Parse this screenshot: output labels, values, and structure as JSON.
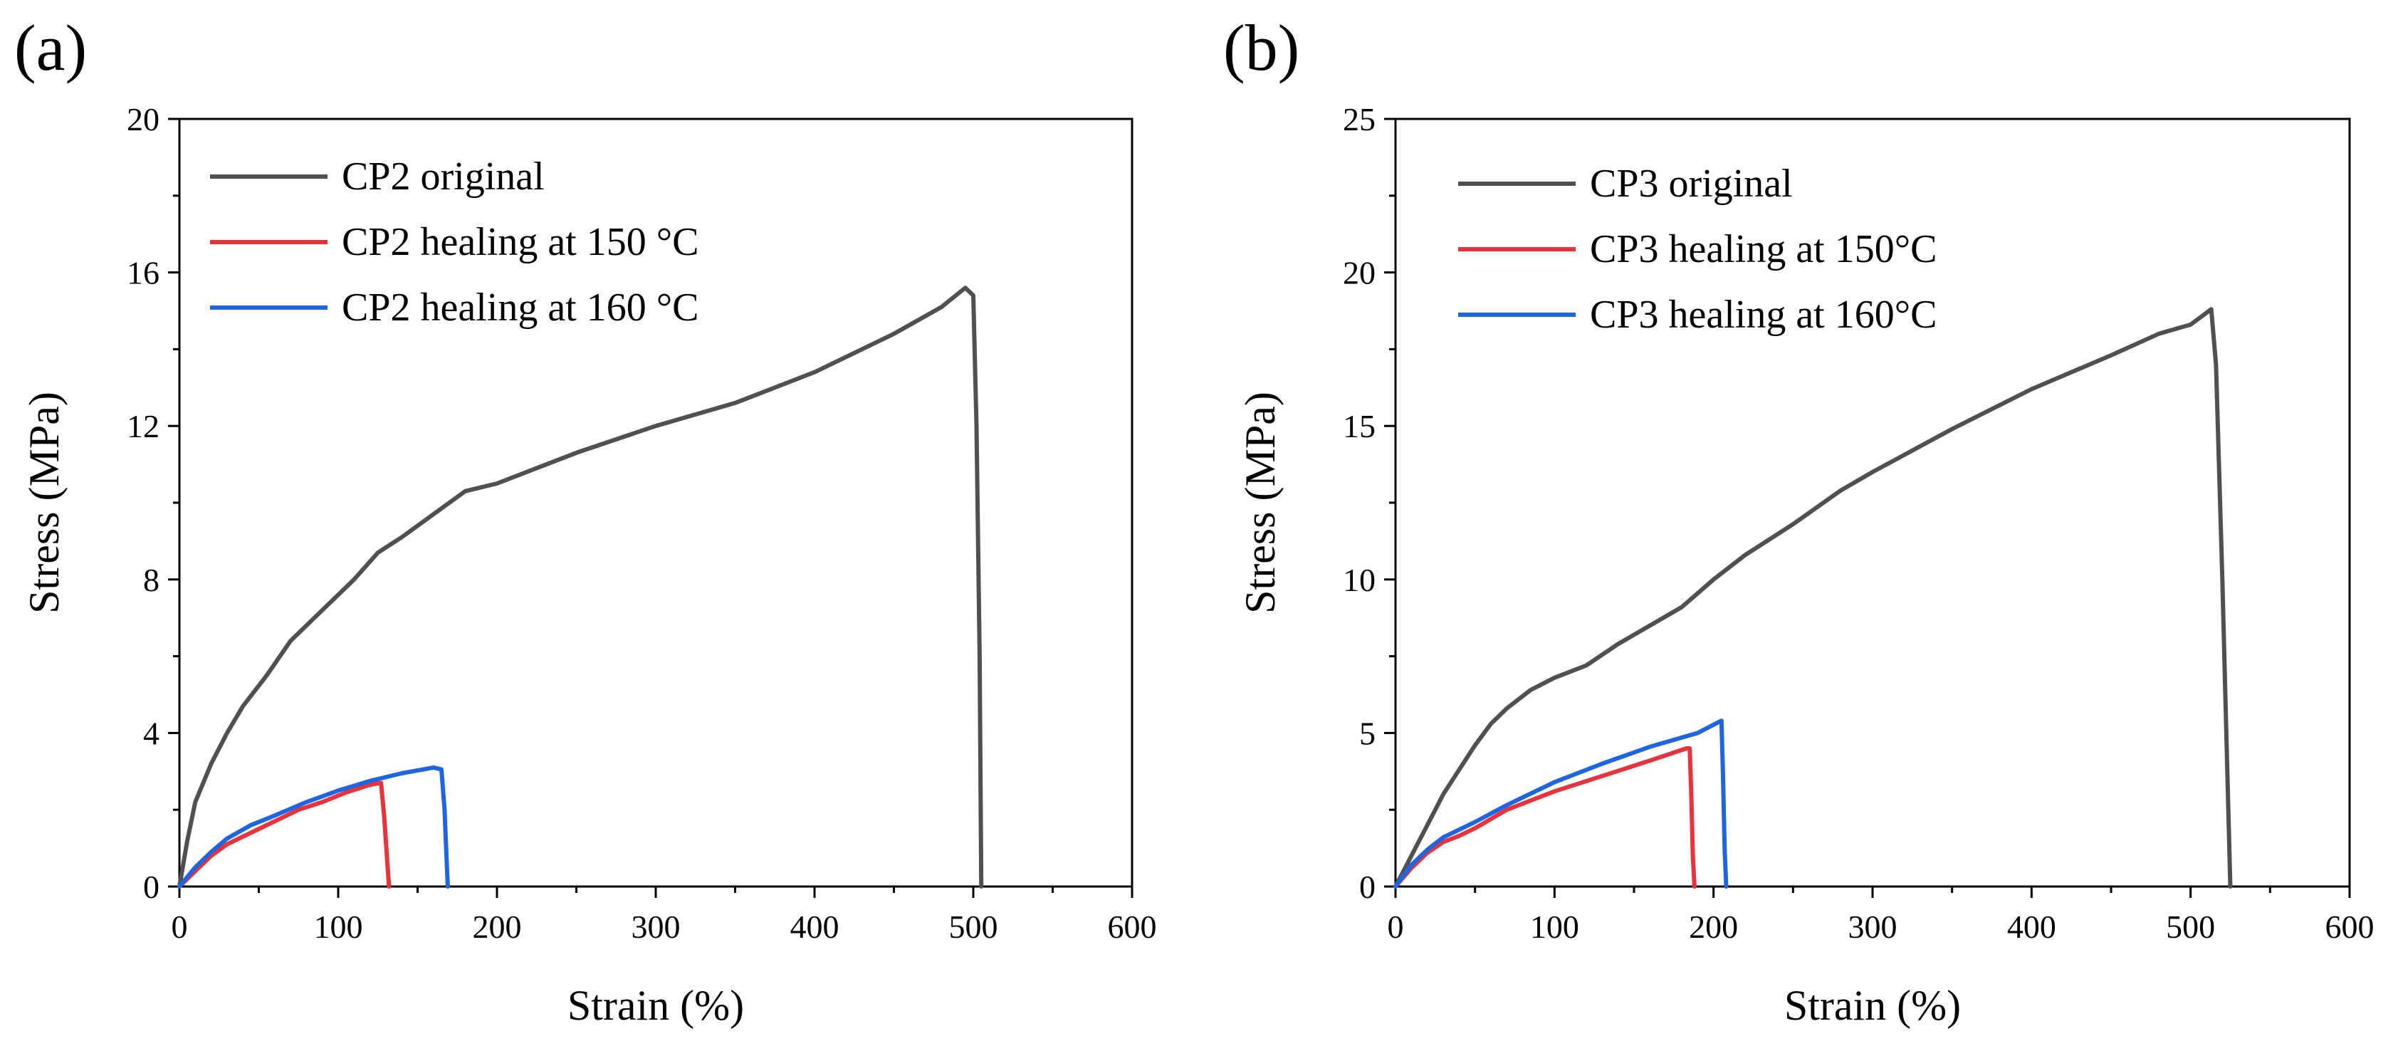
{
  "chart_data": [
    {
      "type": "line",
      "panel_label": "(a)",
      "xlabel": "Strain (%)",
      "ylabel": "Stress (MPa)",
      "xlim": [
        0,
        600
      ],
      "ylim": [
        0,
        20
      ],
      "xticks": [
        0,
        100,
        200,
        300,
        400,
        500,
        600
      ],
      "xtick_labels": [
        "0",
        "100",
        "200",
        "300",
        "400",
        "500",
        "600"
      ],
      "yticks": [
        0,
        4,
        8,
        12,
        16,
        20
      ],
      "ytick_labels": [
        "0",
        "4",
        "8",
        "12",
        "16",
        "20"
      ],
      "legend_position": "top-left",
      "series": [
        {
          "name": "CP2 original",
          "color": "#505050",
          "points": [
            [
              0,
              0
            ],
            [
              5,
              1.2
            ],
            [
              10,
              2.2
            ],
            [
              20,
              3.2
            ],
            [
              30,
              4.0
            ],
            [
              40,
              4.7
            ],
            [
              55,
              5.5
            ],
            [
              70,
              6.4
            ],
            [
              90,
              7.2
            ],
            [
              110,
              8.0
            ],
            [
              125,
              8.7
            ],
            [
              140,
              9.1
            ],
            [
              160,
              9.7
            ],
            [
              180,
              10.3
            ],
            [
              200,
              10.5
            ],
            [
              250,
              11.3
            ],
            [
              300,
              12.0
            ],
            [
              350,
              12.6
            ],
            [
              400,
              13.4
            ],
            [
              450,
              14.4
            ],
            [
              480,
              15.1
            ],
            [
              495,
              15.6
            ],
            [
              500,
              15.4
            ],
            [
              502,
              12.0
            ],
            [
              504,
              6.0
            ],
            [
              505,
              0
            ]
          ]
        },
        {
          "name": "CP2 healing at 150 °C",
          "color": "#e8333c",
          "points": [
            [
              0,
              0
            ],
            [
              10,
              0.4
            ],
            [
              20,
              0.8
            ],
            [
              30,
              1.1
            ],
            [
              45,
              1.4
            ],
            [
              60,
              1.7
            ],
            [
              75,
              2.0
            ],
            [
              90,
              2.2
            ],
            [
              105,
              2.45
            ],
            [
              120,
              2.65
            ],
            [
              127,
              2.7
            ],
            [
              129,
              1.8
            ],
            [
              131,
              0.6
            ],
            [
              132,
              0
            ]
          ]
        },
        {
          "name": "CP2 healing at 160 °C",
          "color": "#1f65e0",
          "points": [
            [
              0,
              0
            ],
            [
              10,
              0.5
            ],
            [
              20,
              0.9
            ],
            [
              30,
              1.25
            ],
            [
              45,
              1.6
            ],
            [
              60,
              1.85
            ],
            [
              80,
              2.2
            ],
            [
              100,
              2.5
            ],
            [
              120,
              2.75
            ],
            [
              140,
              2.95
            ],
            [
              160,
              3.1
            ],
            [
              165,
              3.05
            ],
            [
              167,
              2.0
            ],
            [
              168,
              1.0
            ],
            [
              169,
              0
            ]
          ]
        }
      ]
    },
    {
      "type": "line",
      "panel_label": "(b)",
      "xlabel": "Strain (%)",
      "ylabel": "Stress (MPa)",
      "xlim": [
        0,
        600
      ],
      "ylim": [
        0,
        25
      ],
      "xticks": [
        0,
        100,
        200,
        300,
        400,
        500,
        600
      ],
      "xtick_labels": [
        "0",
        "100",
        "200",
        "300",
        "400",
        "500",
        "600"
      ],
      "yticks": [
        0,
        5,
        10,
        15,
        20,
        25
      ],
      "ytick_labels": [
        "0",
        "5",
        "10",
        "15",
        "20",
        "25"
      ],
      "legend_position": "top-left",
      "series": [
        {
          "name": "CP3 original",
          "color": "#505050",
          "points": [
            [
              0,
              0
            ],
            [
              10,
              1.0
            ],
            [
              20,
              2.0
            ],
            [
              30,
              3.0
            ],
            [
              40,
              3.8
            ],
            [
              50,
              4.6
            ],
            [
              60,
              5.3
            ],
            [
              70,
              5.8
            ],
            [
              85,
              6.4
            ],
            [
              100,
              6.8
            ],
            [
              120,
              7.2
            ],
            [
              140,
              7.9
            ],
            [
              160,
              8.5
            ],
            [
              180,
              9.1
            ],
            [
              200,
              10.0
            ],
            [
              220,
              10.8
            ],
            [
              250,
              11.8
            ],
            [
              280,
              12.9
            ],
            [
              300,
              13.5
            ],
            [
              350,
              14.9
            ],
            [
              400,
              16.2
            ],
            [
              450,
              17.3
            ],
            [
              480,
              18.0
            ],
            [
              500,
              18.3
            ],
            [
              513,
              18.8
            ],
            [
              516,
              17.0
            ],
            [
              520,
              10.0
            ],
            [
              523,
              4.0
            ],
            [
              525,
              0
            ]
          ]
        },
        {
          "name": "CP3 healing at 150°C",
          "color": "#e8333c",
          "points": [
            [
              0,
              0
            ],
            [
              10,
              0.6
            ],
            [
              20,
              1.1
            ],
            [
              30,
              1.45
            ],
            [
              40,
              1.65
            ],
            [
              50,
              1.9
            ],
            [
              70,
              2.5
            ],
            [
              100,
              3.1
            ],
            [
              130,
              3.6
            ],
            [
              160,
              4.1
            ],
            [
              183,
              4.5
            ],
            [
              185,
              4.5
            ],
            [
              186,
              3.0
            ],
            [
              187,
              1.0
            ],
            [
              188,
              0
            ]
          ]
        },
        {
          "name": "CP3 healing at 160°C",
          "color": "#1f65e0",
          "points": [
            [
              0,
              0
            ],
            [
              10,
              0.7
            ],
            [
              20,
              1.2
            ],
            [
              30,
              1.6
            ],
            [
              40,
              1.85
            ],
            [
              50,
              2.1
            ],
            [
              70,
              2.65
            ],
            [
              100,
              3.4
            ],
            [
              130,
              4.0
            ],
            [
              160,
              4.55
            ],
            [
              190,
              5.0
            ],
            [
              203,
              5.35
            ],
            [
              205,
              5.4
            ],
            [
              206,
              3.5
            ],
            [
              207,
              1.2
            ],
            [
              208,
              0
            ]
          ]
        }
      ]
    }
  ]
}
